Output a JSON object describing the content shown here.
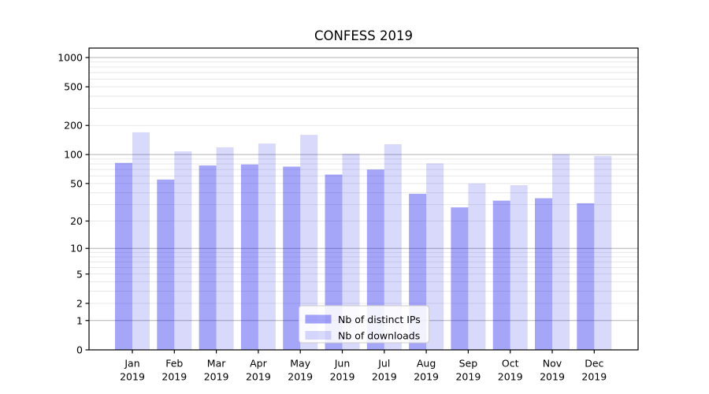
{
  "chart_data": {
    "type": "bar",
    "title": "CONFESS 2019",
    "categories": [
      "Jan 2019",
      "Feb 2019",
      "Mar 2019",
      "Apr 2019",
      "May 2019",
      "Jun 2019",
      "Jul 2019",
      "Aug 2019",
      "Sep 2019",
      "Oct 2019",
      "Nov 2019",
      "Dec 2019"
    ],
    "series": [
      {
        "name": "Nb of distinct IPs",
        "color": "rgba(0,0,238,0.35)",
        "values": [
          82,
          55,
          77,
          79,
          75,
          62,
          70,
          39,
          28,
          33,
          35,
          31
        ]
      },
      {
        "name": "Nb of downloads",
        "color": "rgba(0,0,238,0.15)",
        "values": [
          170,
          108,
          119,
          130,
          160,
          102,
          128,
          81,
          50,
          48,
          101,
          97
        ]
      }
    ],
    "yscale": "log1p",
    "ylim": [
      0,
      1200
    ],
    "yticks": [
      0,
      1,
      2,
      5,
      10,
      20,
      50,
      100,
      200,
      500,
      1000
    ],
    "grid": true,
    "grid_major_values": [
      1,
      10,
      100,
      1000
    ],
    "grid_minor_values": [
      2,
      3,
      4,
      5,
      6,
      7,
      8,
      9,
      20,
      30,
      40,
      50,
      60,
      70,
      80,
      90,
      200,
      300,
      400,
      500,
      600,
      700,
      800,
      900
    ],
    "legend_position": "inside lower-center",
    "xlabel": "",
    "ylabel": ""
  },
  "colors": {
    "bar_distinct_ips": "rgba(0,0,238,0.35)",
    "bar_downloads": "rgba(0,0,238,0.15)",
    "grid_major": "#b3b3b3",
    "grid_minor": "#e8e8e8",
    "axis": "#000000",
    "legend_border": "#cccccc",
    "legend_background": "rgba(255,255,255,0.85)"
  }
}
